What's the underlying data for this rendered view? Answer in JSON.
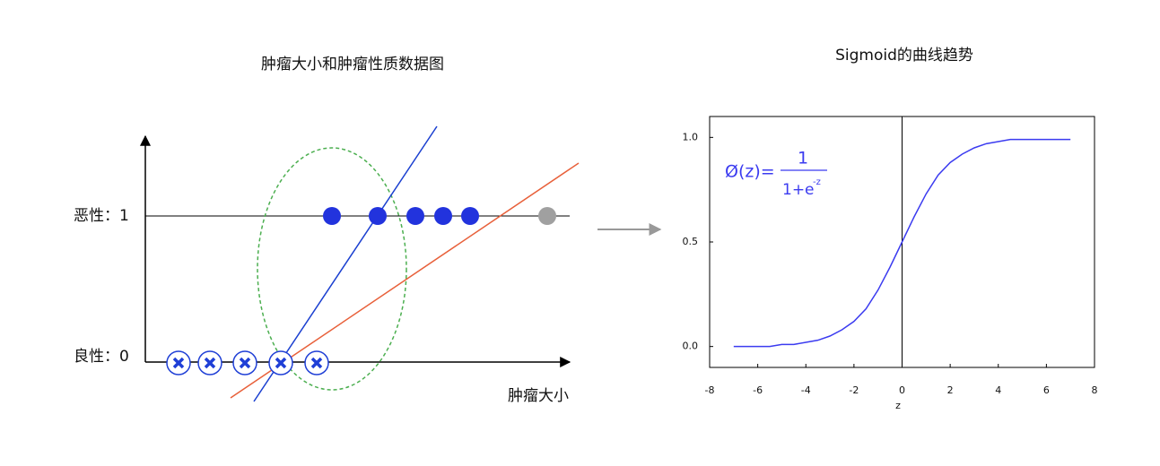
{
  "diagram": {
    "title": "肿瘤大小和肿瘤性质数据图",
    "malignant_label": "恶性：1",
    "benign_label": "良性：0",
    "x_axis_label": "肿瘤大小"
  },
  "chart_data": {
    "type": "line",
    "title": "Sigmoid的曲线趋势",
    "x_label": "z",
    "x": [
      -7,
      -6.5,
      -6,
      -5.5,
      -5,
      -4.5,
      -4,
      -3.5,
      -3,
      -2.5,
      -2,
      -1.5,
      -1,
      -0.5,
      0,
      0.5,
      1,
      1.5,
      2,
      2.5,
      3,
      3.5,
      4,
      4.5,
      5,
      5.5,
      6,
      6.5,
      7
    ],
    "series": [
      {
        "color": "#3b3bf0",
        "values": [
          0,
          0,
          0,
          0,
          0.01,
          0.01,
          0.02,
          0.03,
          0.05,
          0.08,
          0.12,
          0.18,
          0.27,
          0.38,
          0.5,
          0.62,
          0.73,
          0.82,
          0.88,
          0.92,
          0.95,
          0.97,
          0.98,
          0.99,
          0.99,
          0.99,
          0.99,
          0.99,
          0.99
        ]
      }
    ],
    "xlim": [
      -8,
      8
    ],
    "xticks": [
      -8,
      -6,
      -4,
      -2,
      0,
      2,
      4,
      6,
      8
    ],
    "ylim": [
      -0.1,
      1.1
    ],
    "yticks": [
      {
        "value": 0,
        "label": "0.0"
      },
      0.5,
      {
        "value": 1,
        "label": "1.0"
      }
    ],
    "annotations": {
      "lhs": "Ø(z)=",
      "numerator": "1",
      "denominator": "1+e",
      "exponent": "-z"
    }
  }
}
